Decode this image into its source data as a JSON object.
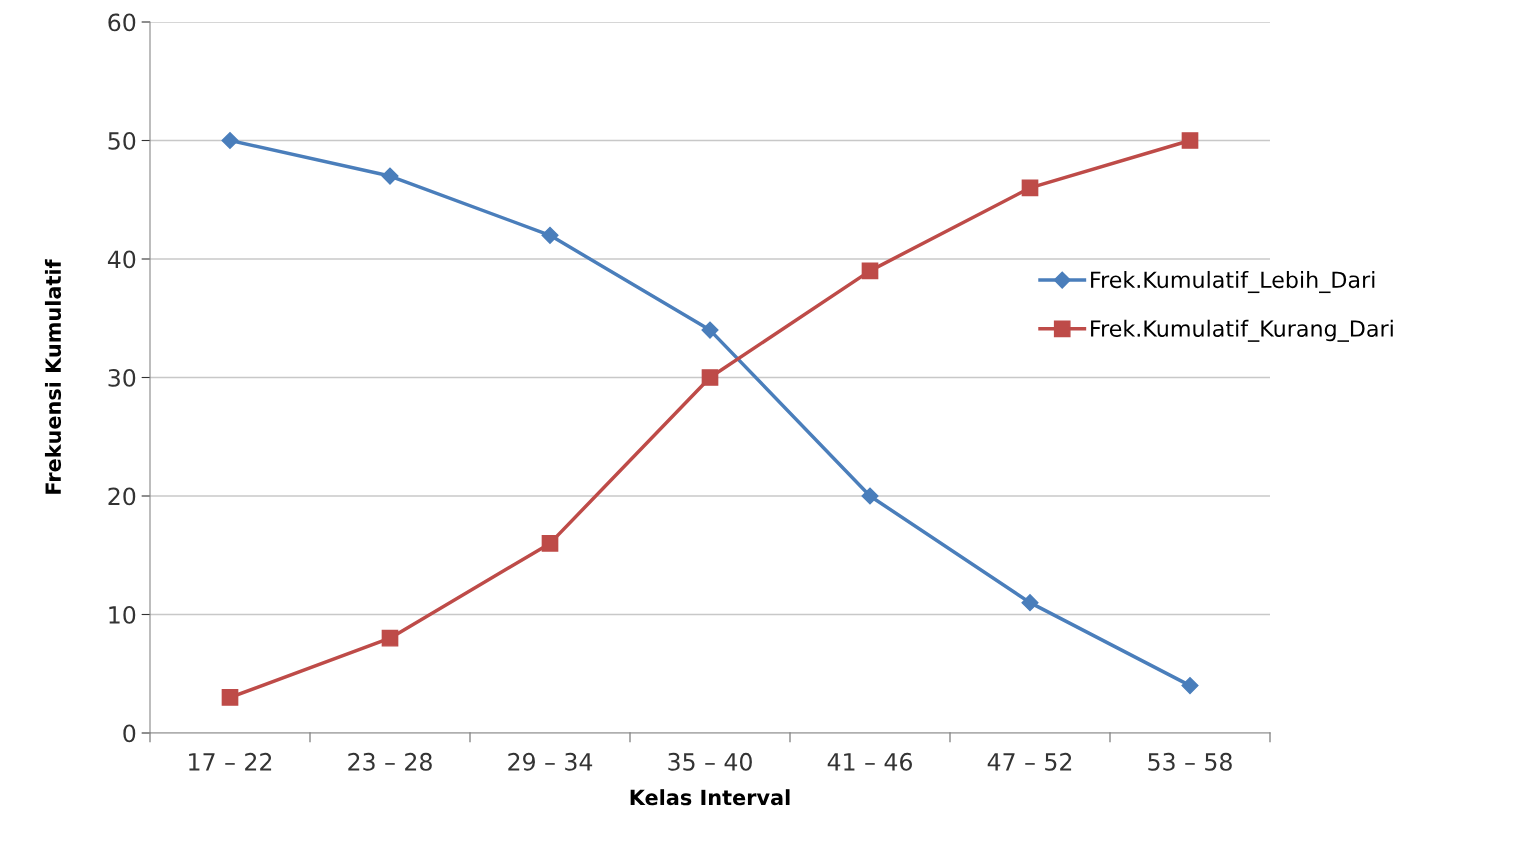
{
  "chart_data": {
    "type": "line",
    "xlabel": "Kelas Interval",
    "ylabel": "Frekuensi Kumulatif",
    "categories": [
      "17 – 22",
      "23 – 28",
      "29 – 34",
      "35 – 40",
      "41 – 46",
      "47 – 52",
      "53 – 58"
    ],
    "series": [
      {
        "name": "Frek.Kumulatif_Lebih_Dari",
        "color": "#4a7ebb",
        "marker": "diamond",
        "values": [
          50,
          47,
          42,
          34,
          20,
          11,
          4
        ]
      },
      {
        "name": "Frek.Kumulatif_Kurang_Dari",
        "color": "#be4b48",
        "marker": "square",
        "values": [
          3,
          8,
          16,
          30,
          39,
          46,
          50
        ]
      }
    ],
    "ylim": [
      0,
      60
    ],
    "yticks": [
      0,
      10,
      20,
      30,
      40,
      50,
      60
    ],
    "grid": "y",
    "legend": "right",
    "line_style": "solid"
  }
}
